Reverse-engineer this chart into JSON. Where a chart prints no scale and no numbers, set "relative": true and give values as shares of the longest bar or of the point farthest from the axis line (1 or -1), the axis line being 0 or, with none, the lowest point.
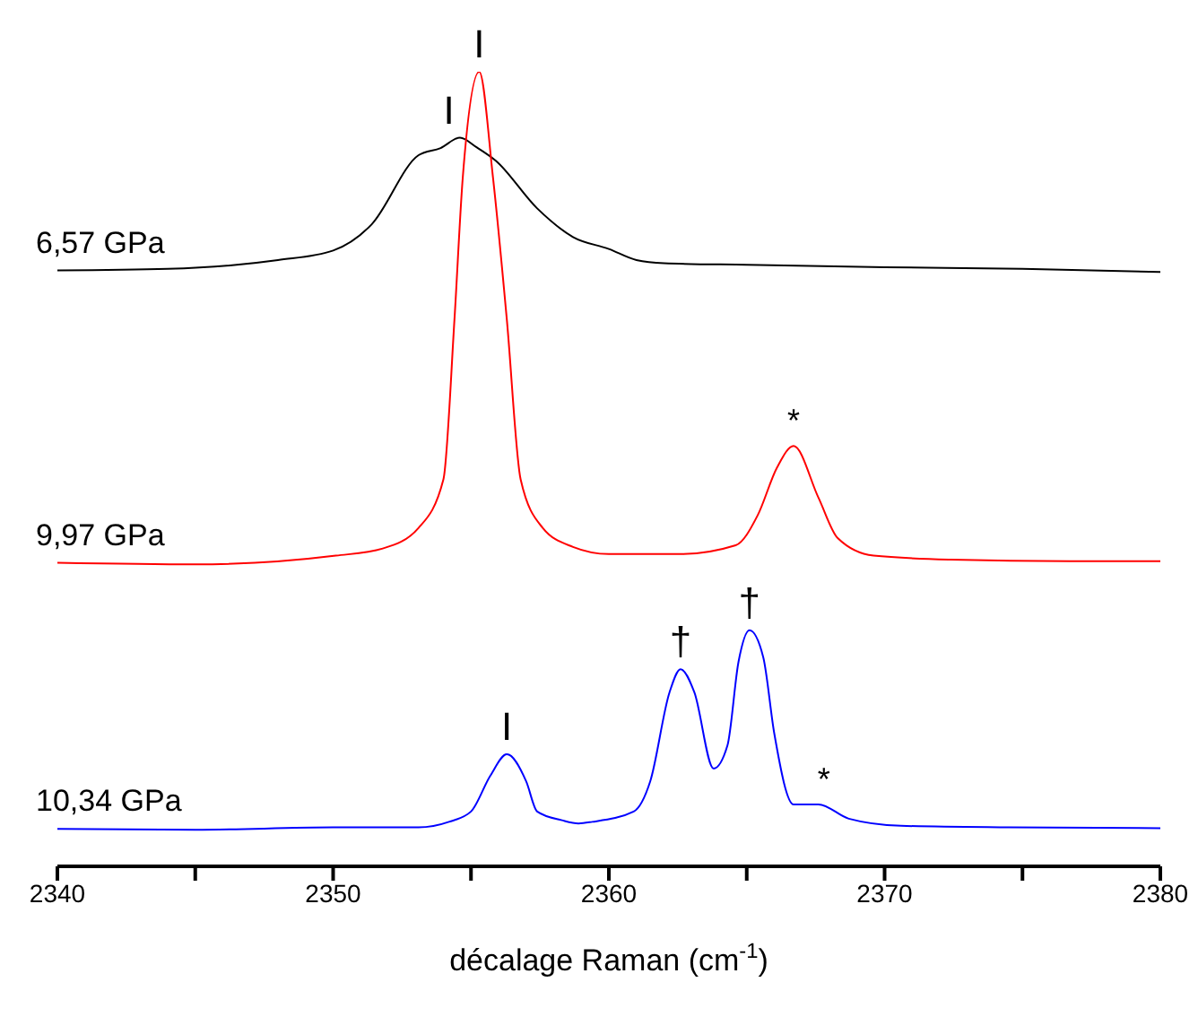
{
  "chart_data": {
    "type": "line",
    "relative": true,
    "xlabel": "décalage Raman (cm$^{-1}$)",
    "xlim": [
      2340,
      2380
    ],
    "xticks": [
      2340,
      {
        "value": 2345,
        "label": null
      },
      2350,
      {
        "value": 2355,
        "label": null
      },
      2360,
      {
        "value": 2365,
        "label": null
      },
      2370,
      {
        "value": 2375,
        "label": null
      },
      2380
    ],
    "grid": false,
    "legend": false,
    "marker": "none",
    "line_style": "solid",
    "series": [
      {
        "name": "6,57 GPa",
        "color": "#000000",
        "x": [
          2340,
          2344,
          2348,
          2350,
          2351.4,
          2353.1,
          2353.9,
          2354.6,
          2355.2,
          2355.9,
          2357.4,
          2358.7,
          2360,
          2361,
          2362,
          2365,
          2370,
          2375,
          2380
        ],
        "values": [
          0.75,
          0.752,
          0.763,
          0.775,
          0.808,
          0.895,
          0.904,
          0.917,
          0.905,
          0.888,
          0.828,
          0.792,
          0.777,
          0.763,
          0.759,
          0.757,
          0.754,
          0.752,
          0.748
        ]
      },
      {
        "name": "9,97 GPa",
        "color": "#ff0000",
        "x": [
          2340,
          2345,
          2350.1,
          2351.8,
          2353.1,
          2354.0,
          2354.4,
          2354.7,
          2355.3,
          2355.8,
          2356.3,
          2356.8,
          2357.6,
          2358.7,
          2360,
          2362.6,
          2364.6,
          2365.4,
          2366.1,
          2366.7,
          2367.6,
          2368.3,
          2369.6,
          2372.4,
          2376.7,
          2380
        ],
        "values": [
          0.382,
          0.38,
          0.391,
          0.4,
          0.426,
          0.487,
          0.688,
          0.866,
          1.0,
          0.866,
          0.688,
          0.487,
          0.426,
          0.402,
          0.393,
          0.393,
          0.404,
          0.442,
          0.502,
          0.529,
          0.464,
          0.413,
          0.391,
          0.386,
          0.384,
          0.384
        ]
      },
      {
        "name": "10,34 GPa",
        "color": "#0000ff",
        "x": [
          2340,
          2345,
          2350,
          2353.1,
          2354.2,
          2355.0,
          2355.7,
          2356.3,
          2357.0,
          2357.4,
          2358.3,
          2358.9,
          2359.4,
          2360.9,
          2361.5,
          2362.2,
          2362.6,
          2363.1,
          2363.8,
          2364.3,
          2364.7,
          2365.1,
          2365.6,
          2366.0,
          2366.7,
          2367.6,
          2368.7,
          2370.6,
          2374.5,
          2380
        ],
        "values": [
          0.047,
          0.046,
          0.049,
          0.049,
          0.056,
          0.069,
          0.114,
          0.141,
          0.107,
          0.069,
          0.058,
          0.054,
          0.056,
          0.069,
          0.107,
          0.219,
          0.248,
          0.219,
          0.123,
          0.152,
          0.257,
          0.297,
          0.263,
          0.167,
          0.078,
          0.078,
          0.06,
          0.051,
          0.049,
          0.048
        ]
      }
    ],
    "annotations": [
      {
        "text": "I",
        "x": 2354.2,
        "y": 0.917
      },
      {
        "text": "I",
        "x": 2355.3,
        "y": 1.0
      },
      {
        "text": "*",
        "x": 2366.7,
        "y": 0.529
      },
      {
        "text": "I",
        "x": 2356.3,
        "y": 0.141
      },
      {
        "text": "†",
        "x": 2362.6,
        "y": 0.248
      },
      {
        "text": "†",
        "x": 2365.1,
        "y": 0.297
      },
      {
        "text": "*",
        "x": 2367.8,
        "y": 0.078
      }
    ]
  }
}
